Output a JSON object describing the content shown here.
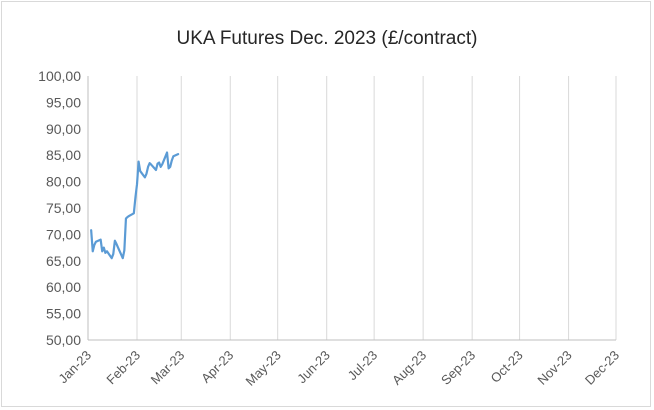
{
  "chart_data": {
    "type": "line",
    "title": "UKA Futures Dec. 2023 (£/contract)",
    "xlabel": "",
    "ylabel": "",
    "ylim": [
      50,
      100
    ],
    "y_ticks": [
      "50,00",
      "55,00",
      "60,00",
      "65,00",
      "70,00",
      "75,00",
      "80,00",
      "85,00",
      "90,00",
      "95,00",
      "100,00"
    ],
    "x_ticks": [
      "Jan-23",
      "Feb-23",
      "Mar-23",
      "Apr-23",
      "May-23",
      "Jun-23",
      "Jul-23",
      "Aug-23",
      "Sep-23",
      "Oct-23",
      "Nov-23",
      "Dec-23"
    ],
    "x_range": [
      "2023-01-01",
      "2023-12-01"
    ],
    "grid": "vertical",
    "legend": "none",
    "series": [
      {
        "color": "#5b9bd5",
        "points": [
          {
            "x": "2023-01-03",
            "y": 70.8
          },
          {
            "x": "2023-01-04",
            "y": 66.8
          },
          {
            "x": "2023-01-05",
            "y": 68.0
          },
          {
            "x": "2023-01-06",
            "y": 68.6
          },
          {
            "x": "2023-01-09",
            "y": 69.0
          },
          {
            "x": "2023-01-10",
            "y": 66.8
          },
          {
            "x": "2023-01-11",
            "y": 67.5
          },
          {
            "x": "2023-01-12",
            "y": 66.5
          },
          {
            "x": "2023-01-13",
            "y": 66.8
          },
          {
            "x": "2023-01-16",
            "y": 65.5
          },
          {
            "x": "2023-01-17",
            "y": 66.3
          },
          {
            "x": "2023-01-18",
            "y": 68.8
          },
          {
            "x": "2023-01-19",
            "y": 68.2
          },
          {
            "x": "2023-01-20",
            "y": 67.5
          },
          {
            "x": "2023-01-23",
            "y": 65.5
          },
          {
            "x": "2023-01-24",
            "y": 67.0
          },
          {
            "x": "2023-01-25",
            "y": 73.0
          },
          {
            "x": "2023-01-26",
            "y": 73.3
          },
          {
            "x": "2023-01-27",
            "y": 73.5
          },
          {
            "x": "2023-01-30",
            "y": 74.0
          },
          {
            "x": "2023-01-31",
            "y": 77.0
          },
          {
            "x": "2023-02-01",
            "y": 79.5
          },
          {
            "x": "2023-02-02",
            "y": 83.8
          },
          {
            "x": "2023-02-03",
            "y": 82.0
          },
          {
            "x": "2023-02-06",
            "y": 80.8
          },
          {
            "x": "2023-02-07",
            "y": 81.5
          },
          {
            "x": "2023-02-08",
            "y": 82.8
          },
          {
            "x": "2023-02-09",
            "y": 83.5
          },
          {
            "x": "2023-02-10",
            "y": 83.2
          },
          {
            "x": "2023-02-13",
            "y": 82.2
          },
          {
            "x": "2023-02-14",
            "y": 83.4
          },
          {
            "x": "2023-02-15",
            "y": 83.6
          },
          {
            "x": "2023-02-16",
            "y": 82.8
          },
          {
            "x": "2023-02-17",
            "y": 83.3
          },
          {
            "x": "2023-02-20",
            "y": 85.5
          },
          {
            "x": "2023-02-21",
            "y": 82.5
          },
          {
            "x": "2023-02-22",
            "y": 82.8
          },
          {
            "x": "2023-02-23",
            "y": 84.0
          },
          {
            "x": "2023-02-24",
            "y": 84.8
          },
          {
            "x": "2023-02-27",
            "y": 85.2
          }
        ]
      }
    ]
  }
}
